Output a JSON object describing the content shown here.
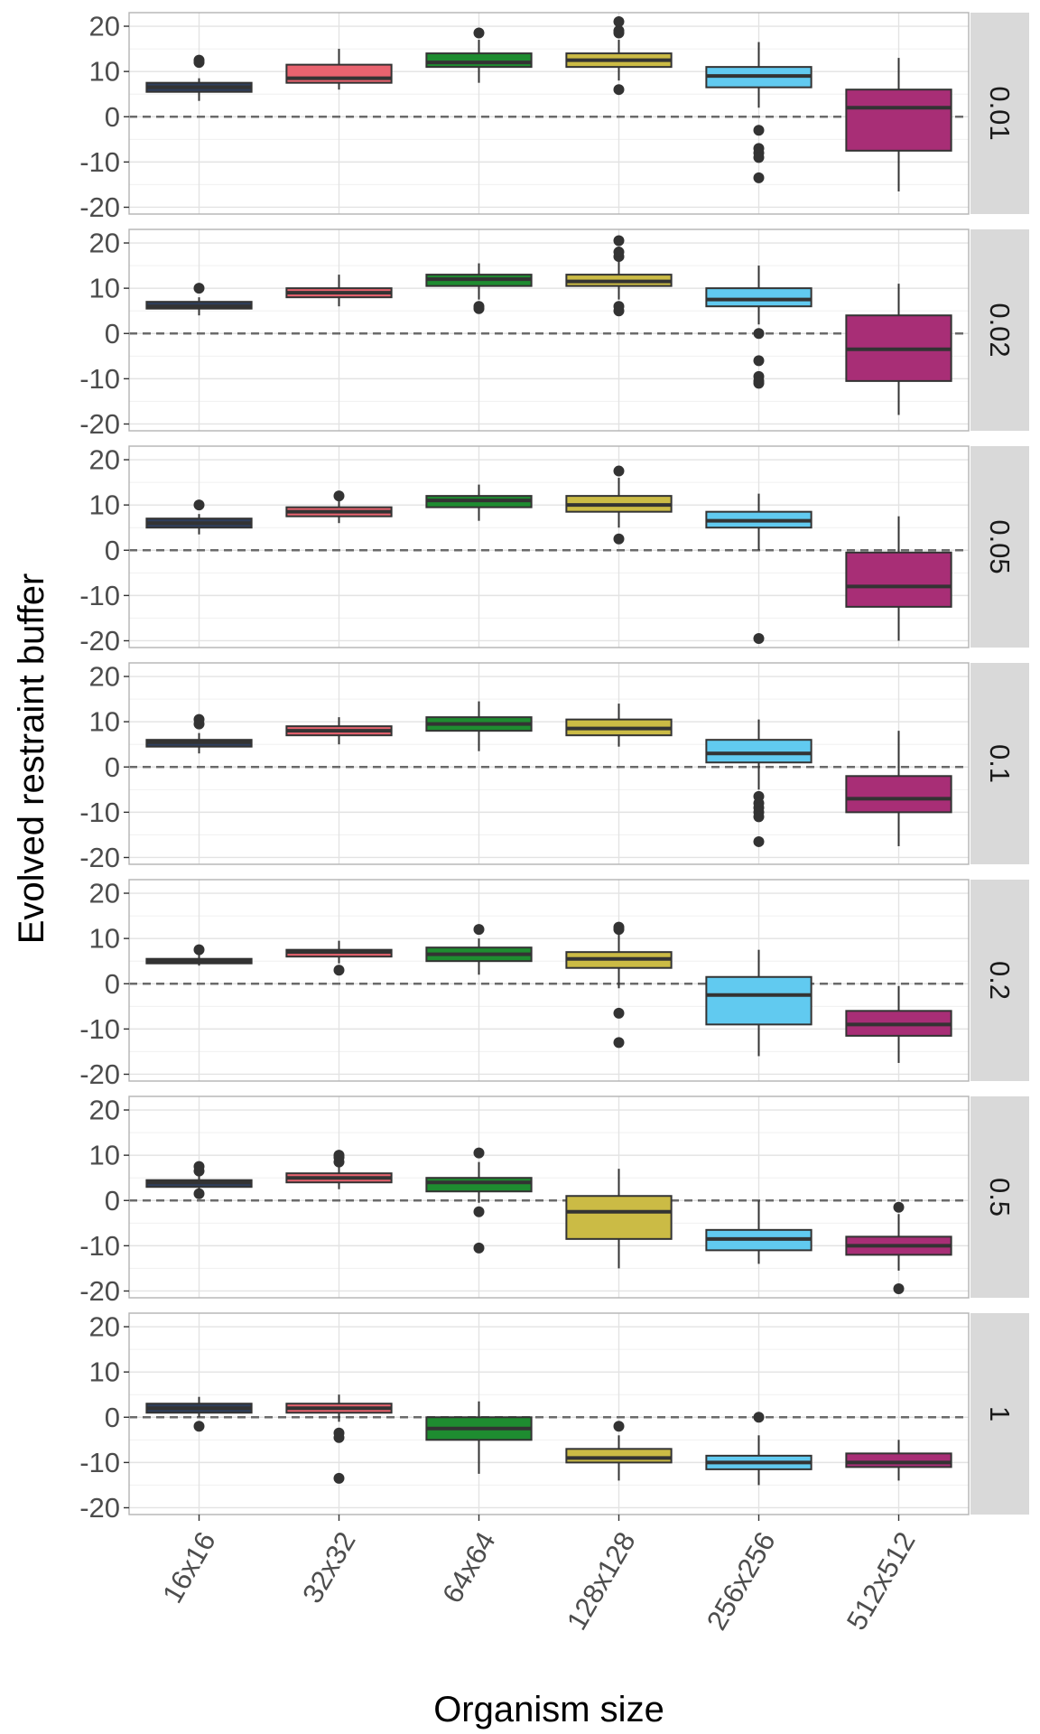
{
  "chart_data": {
    "type": "boxplot",
    "xlabel": "Organism size",
    "ylabel": "Evolved restraint buffer",
    "categories": [
      "16x16",
      "32x32",
      "64x64",
      "128x128",
      "256x256",
      "512x512"
    ],
    "y_ticks": [
      20,
      10,
      0,
      -10,
      -20
    ],
    "y_tick_labels": [
      "20",
      "10",
      "0",
      "-10",
      "-20"
    ],
    "ylim": [
      -21.5,
      23
    ],
    "reference_line": 0,
    "grid": true,
    "colors": [
      "#2e3e5c",
      "#e8636f",
      "#1e8c30",
      "#cbbb45",
      "#61caf0",
      "#a82e76"
    ],
    "panels": [
      {
        "label": "0.01",
        "boxes": [
          {
            "min": 3.5,
            "q1": 5.5,
            "median": 6.5,
            "q3": 7.5,
            "max": 8.5,
            "outliers": [
              12,
              12.5
            ]
          },
          {
            "min": 6,
            "q1": 7.5,
            "median": 8.5,
            "q3": 11.5,
            "max": 15,
            "outliers": []
          },
          {
            "min": 7.5,
            "q1": 11,
            "median": 12,
            "q3": 14,
            "max": 17,
            "outliers": [
              18.5
            ]
          },
          {
            "min": 8,
            "q1": 11,
            "median": 12.5,
            "q3": 14,
            "max": 17,
            "outliers": [
              6,
              18.5,
              19,
              21
            ]
          },
          {
            "min": 2,
            "q1": 6.5,
            "median": 9,
            "q3": 11,
            "max": 16.5,
            "outliers": [
              -3,
              -7,
              -8,
              -9,
              -13.5
            ]
          },
          {
            "min": -16.5,
            "q1": -7.5,
            "median": 2,
            "q3": 6,
            "max": 13,
            "outliers": []
          }
        ]
      },
      {
        "label": "0.02",
        "boxes": [
          {
            "min": 4,
            "q1": 5.5,
            "median": 6,
            "q3": 7,
            "max": 8,
            "outliers": [
              10
            ]
          },
          {
            "min": 6,
            "q1": 8,
            "median": 9,
            "q3": 10,
            "max": 13,
            "outliers": []
          },
          {
            "min": 7.5,
            "q1": 10.5,
            "median": 12,
            "q3": 13,
            "max": 15.5,
            "outliers": [
              5.5,
              6
            ]
          },
          {
            "min": 7.5,
            "q1": 10.5,
            "median": 11.5,
            "q3": 13,
            "max": 16,
            "outliers": [
              5,
              6,
              17,
              18,
              20.5
            ]
          },
          {
            "min": 2,
            "q1": 6,
            "median": 7.5,
            "q3": 10,
            "max": 15,
            "outliers": [
              0,
              -6,
              -9.5,
              -10.5,
              -11
            ]
          },
          {
            "min": -18,
            "q1": -10.5,
            "median": -3.5,
            "q3": 4,
            "max": 11,
            "outliers": []
          }
        ]
      },
      {
        "label": "0.05",
        "boxes": [
          {
            "min": 3.5,
            "q1": 5,
            "median": 6,
            "q3": 7,
            "max": 8,
            "outliers": [
              10
            ]
          },
          {
            "min": 6,
            "q1": 7.5,
            "median": 8.5,
            "q3": 9.5,
            "max": 11,
            "outliers": [
              12
            ]
          },
          {
            "min": 6.5,
            "q1": 9.5,
            "median": 11,
            "q3": 12,
            "max": 14.5,
            "outliers": []
          },
          {
            "min": 5,
            "q1": 8.5,
            "median": 10,
            "q3": 12,
            "max": 16,
            "outliers": [
              2.5,
              17.5
            ]
          },
          {
            "min": 0,
            "q1": 5,
            "median": 6.5,
            "q3": 8.5,
            "max": 12.5,
            "outliers": [
              -19.5
            ]
          },
          {
            "min": -20,
            "q1": -12.5,
            "median": -8,
            "q3": -0.5,
            "max": 7.5,
            "outliers": []
          }
        ]
      },
      {
        "label": "0.1",
        "boxes": [
          {
            "min": 3,
            "q1": 4.5,
            "median": 5.5,
            "q3": 6,
            "max": 7.5,
            "outliers": [
              9.5,
              10.5
            ]
          },
          {
            "min": 5,
            "q1": 7,
            "median": 8,
            "q3": 9,
            "max": 11,
            "outliers": []
          },
          {
            "min": 3.5,
            "q1": 8,
            "median": 9.5,
            "q3": 11,
            "max": 14.5,
            "outliers": []
          },
          {
            "min": 4.5,
            "q1": 7,
            "median": 8.5,
            "q3": 10.5,
            "max": 14,
            "outliers": []
          },
          {
            "min": -5,
            "q1": 1,
            "median": 3,
            "q3": 6,
            "max": 10.5,
            "outliers": [
              -6.5,
              -8,
              -9,
              -10,
              -11,
              -16.5
            ]
          },
          {
            "min": -17.5,
            "q1": -10,
            "median": -7,
            "q3": -2,
            "max": 8,
            "outliers": []
          }
        ]
      },
      {
        "label": "0.2",
        "boxes": [
          {
            "min": 4,
            "q1": 4.5,
            "median": 5,
            "q3": 5.5,
            "max": 6.5,
            "outliers": [
              7.5
            ]
          },
          {
            "min": 4.5,
            "q1": 6,
            "median": 7,
            "q3": 7.5,
            "max": 9.5,
            "outliers": [
              3
            ]
          },
          {
            "min": 2,
            "q1": 5,
            "median": 6.5,
            "q3": 8,
            "max": 10,
            "outliers": [
              12
            ]
          },
          {
            "min": -1,
            "q1": 3.5,
            "median": 5.5,
            "q3": 7,
            "max": 11,
            "outliers": [
              -6.5,
              -13,
              12,
              12.5
            ]
          },
          {
            "min": -16,
            "q1": -9,
            "median": -2.5,
            "q3": 1.5,
            "max": 7.5,
            "outliers": []
          },
          {
            "min": -17.5,
            "q1": -11.5,
            "median": -9,
            "q3": -6,
            "max": -0.5,
            "outliers": []
          }
        ]
      },
      {
        "label": "0.5",
        "boxes": [
          {
            "min": 2.5,
            "q1": 3,
            "median": 4,
            "q3": 4.5,
            "max": 6,
            "outliers": [
              1.5,
              6.5,
              7.5
            ]
          },
          {
            "min": 2.5,
            "q1": 4,
            "median": 5,
            "q3": 6,
            "max": 7.5,
            "outliers": [
              8.5,
              9.5,
              10
            ]
          },
          {
            "min": -0.5,
            "q1": 2,
            "median": 4,
            "q3": 5,
            "max": 8.5,
            "outliers": [
              -2.5,
              -10.5,
              10.5
            ]
          },
          {
            "min": -15,
            "q1": -8.5,
            "median": -2.5,
            "q3": 1,
            "max": 7,
            "outliers": []
          },
          {
            "min": -14,
            "q1": -11,
            "median": -8.5,
            "q3": -6.5,
            "max": 0,
            "outliers": []
          },
          {
            "min": -15.5,
            "q1": -12,
            "median": -10,
            "q3": -8,
            "max": -3,
            "outliers": [
              -1.5,
              -19.5
            ]
          }
        ]
      },
      {
        "label": "1",
        "boxes": [
          {
            "min": 0,
            "q1": 1,
            "median": 2,
            "q3": 3,
            "max": 4.5,
            "outliers": [
              -2
            ]
          },
          {
            "min": -1,
            "q1": 1,
            "median": 2,
            "q3": 3,
            "max": 5,
            "outliers": [
              -3.5,
              -4.5,
              -13.5
            ]
          },
          {
            "min": -12.5,
            "q1": -5,
            "median": -2.5,
            "q3": 0,
            "max": 3.5,
            "outliers": []
          },
          {
            "min": -14,
            "q1": -10,
            "median": -9,
            "q3": -7,
            "max": -4,
            "outliers": [
              -2
            ]
          },
          {
            "min": -15,
            "q1": -11.5,
            "median": -10,
            "q3": -8.5,
            "max": -4,
            "outliers": [
              0
            ]
          },
          {
            "min": -14,
            "q1": -11,
            "median": -10,
            "q3": -8,
            "max": -5,
            "outliers": []
          }
        ]
      }
    ]
  }
}
